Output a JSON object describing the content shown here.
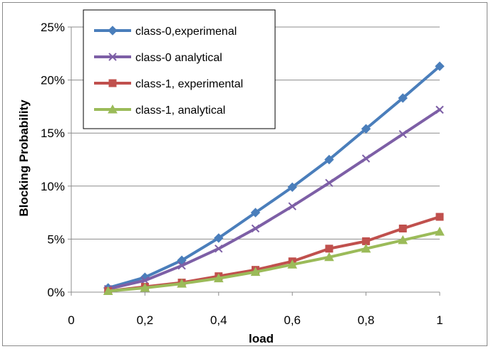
{
  "chart_data": {
    "type": "line",
    "title": "",
    "xlabel": "load",
    "ylabel": "Blocking Probability",
    "xlim": [
      0,
      1
    ],
    "ylim": [
      0,
      25
    ],
    "x_ticks": [
      {
        "value": 0,
        "label": "0"
      },
      {
        "value": 0.2,
        "label": "0,2"
      },
      {
        "value": 0.4,
        "label": "0,4"
      },
      {
        "value": 0.6,
        "label": "0,6"
      },
      {
        "value": 0.8,
        "label": "0,8"
      },
      {
        "value": 1,
        "label": "1"
      }
    ],
    "y_ticks": [
      {
        "value": 0,
        "label": "0%"
      },
      {
        "value": 5,
        "label": "5%"
      },
      {
        "value": 10,
        "label": "10%"
      },
      {
        "value": 15,
        "label": "15%"
      },
      {
        "value": 20,
        "label": "20%"
      },
      {
        "value": 25,
        "label": "25%"
      }
    ],
    "grid": "horizontal",
    "legend_position": "top-left",
    "x": [
      0.1,
      0.2,
      0.3,
      0.4,
      0.5,
      0.6,
      0.7,
      0.8,
      0.9,
      1.0
    ],
    "series": [
      {
        "name": "class-0,experimenal",
        "marker": "diamond",
        "color": "#4a7ebb",
        "values": [
          0.4,
          1.4,
          3.0,
          5.1,
          7.5,
          9.9,
          12.5,
          15.4,
          18.3,
          21.3
        ]
      },
      {
        "name": "class-0 analytical",
        "marker": "x",
        "color": "#7d5fa6",
        "values": [
          0.3,
          1.1,
          2.5,
          4.1,
          6.0,
          8.1,
          10.3,
          12.6,
          14.9,
          17.2
        ]
      },
      {
        "name": "class-1, experimental",
        "marker": "square",
        "color": "#c0504d",
        "values": [
          0.1,
          0.5,
          0.9,
          1.5,
          2.1,
          2.9,
          4.1,
          4.8,
          6.0,
          7.1
        ]
      },
      {
        "name": "class-1, analytical",
        "marker": "triangle",
        "color": "#9bbb59",
        "values": [
          0.1,
          0.4,
          0.8,
          1.3,
          1.9,
          2.6,
          3.3,
          4.1,
          4.9,
          5.7
        ]
      }
    ]
  }
}
